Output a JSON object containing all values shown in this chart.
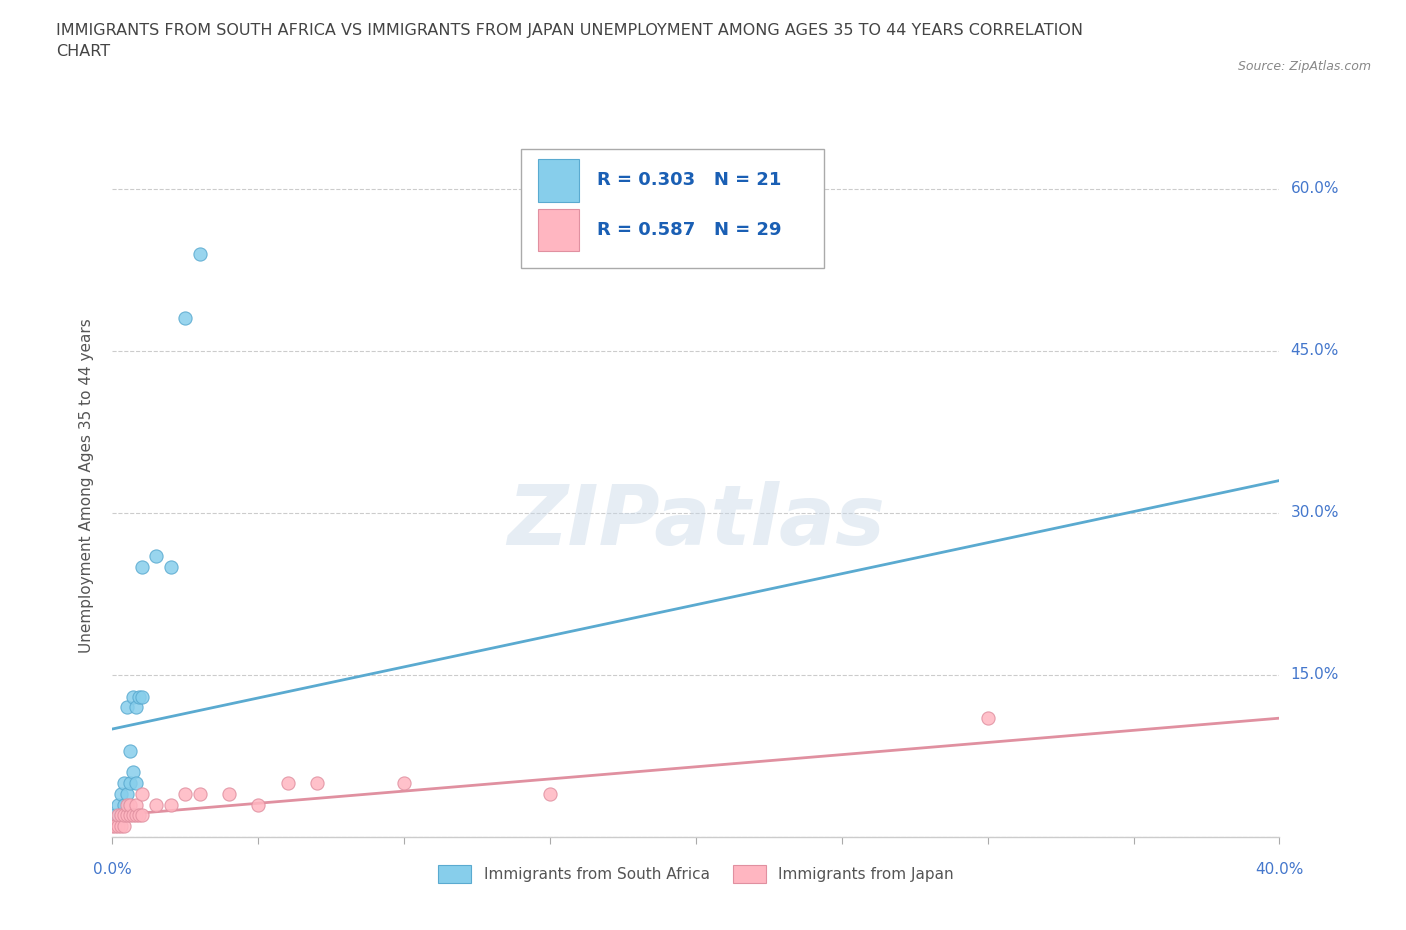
{
  "title": "IMMIGRANTS FROM SOUTH AFRICA VS IMMIGRANTS FROM JAPAN UNEMPLOYMENT AMONG AGES 35 TO 44 YEARS CORRELATION\nCHART",
  "source": "Source: ZipAtlas.com",
  "ylabel": "Unemployment Among Ages 35 to 44 years",
  "xlim": [
    0.0,
    0.4
  ],
  "ylim": [
    0.0,
    0.65
  ],
  "xticks": [
    0.0,
    0.05,
    0.1,
    0.15,
    0.2,
    0.25,
    0.3,
    0.35,
    0.4
  ],
  "yticks": [
    0.0,
    0.15,
    0.3,
    0.45,
    0.6
  ],
  "xtick_labels_show": {
    "0": "0.0%",
    "8": "40.0%"
  },
  "ytick_labels_show": {
    "1": "15.0%",
    "2": "30.0%",
    "3": "45.0%",
    "4": "60.0%"
  },
  "south_africa_x": [
    0.001,
    0.002,
    0.003,
    0.003,
    0.004,
    0.004,
    0.005,
    0.005,
    0.006,
    0.006,
    0.007,
    0.007,
    0.008,
    0.008,
    0.009,
    0.01,
    0.01,
    0.015,
    0.02,
    0.025,
    0.03
  ],
  "south_africa_y": [
    0.02,
    0.03,
    0.02,
    0.04,
    0.03,
    0.05,
    0.04,
    0.12,
    0.05,
    0.08,
    0.06,
    0.13,
    0.12,
    0.05,
    0.13,
    0.13,
    0.25,
    0.26,
    0.25,
    0.48,
    0.54
  ],
  "japan_x": [
    0.0,
    0.001,
    0.002,
    0.002,
    0.003,
    0.003,
    0.004,
    0.004,
    0.005,
    0.005,
    0.006,
    0.006,
    0.007,
    0.008,
    0.008,
    0.009,
    0.01,
    0.01,
    0.015,
    0.02,
    0.025,
    0.03,
    0.04,
    0.05,
    0.06,
    0.07,
    0.1,
    0.15,
    0.3
  ],
  "japan_y": [
    0.01,
    0.01,
    0.01,
    0.02,
    0.01,
    0.02,
    0.01,
    0.02,
    0.02,
    0.03,
    0.02,
    0.03,
    0.02,
    0.02,
    0.03,
    0.02,
    0.02,
    0.04,
    0.03,
    0.03,
    0.04,
    0.04,
    0.04,
    0.03,
    0.05,
    0.05,
    0.05,
    0.04,
    0.11
  ],
  "sa_trend_x": [
    0.0,
    0.4
  ],
  "sa_trend_y": [
    0.1,
    0.33
  ],
  "japan_trend_x": [
    0.0,
    0.4
  ],
  "japan_trend_y": [
    0.02,
    0.11
  ],
  "sa_color": "#87CEEB",
  "sa_color_dark": "#5aaad0",
  "japan_color": "#FFB6C1",
  "japan_color_dark": "#e090a0",
  "sa_R": 0.303,
  "sa_N": 21,
  "japan_R": 0.587,
  "japan_N": 29,
  "watermark": "ZIPatlas",
  "legend_label_sa": "Immigrants from South Africa",
  "legend_label_japan": "Immigrants from Japan",
  "background_color": "#ffffff",
  "grid_color": "#cccccc",
  "title_color": "#444444",
  "axis_label_color": "#555555",
  "tick_color": "#4477cc",
  "R_N_color": "#1a5fb4"
}
